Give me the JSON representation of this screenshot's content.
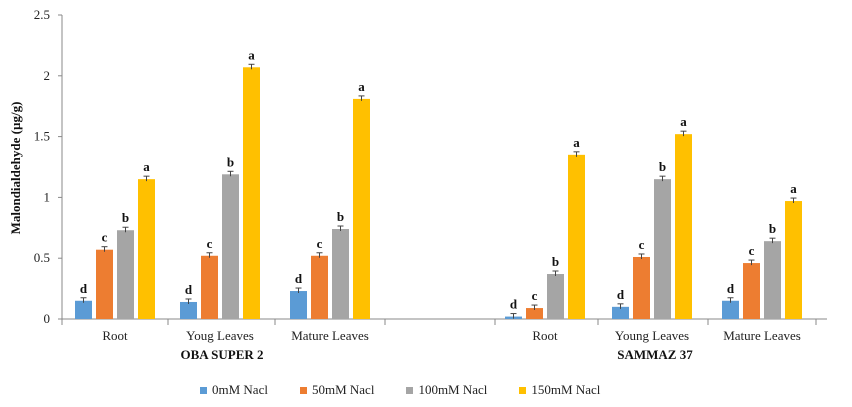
{
  "chart_data": {
    "type": "bar",
    "ylabel": "Malondialdehyde  (µg/g)",
    "ylim": [
      0,
      2.5
    ],
    "yticks": [
      "0",
      "0.5",
      "1",
      "1.5",
      "2",
      "2.5"
    ],
    "grid": false,
    "legend_position": "bottom",
    "colors": [
      "#5b9bd5",
      "#ed7d31",
      "#a5a5a5",
      "#ffc000"
    ],
    "groups": [
      {
        "name": "OBA SUPER 2",
        "categories": [
          "Root",
          "Youg Leaves",
          "Mature Leaves"
        ],
        "series": [
          {
            "name": "0mM Nacl",
            "values": [
              0.15,
              0.14,
              0.23
            ],
            "labels": [
              "d",
              "d",
              "d"
            ]
          },
          {
            "name": "50mM Nacl",
            "values": [
              0.57,
              0.52,
              0.52
            ],
            "labels": [
              "c",
              "c",
              "c"
            ]
          },
          {
            "name": "100mM Nacl",
            "values": [
              0.73,
              1.19,
              0.74
            ],
            "labels": [
              "b",
              "b",
              "b"
            ]
          },
          {
            "name": "150mM Nacl",
            "values": [
              1.15,
              2.07,
              1.81
            ],
            "labels": [
              "a",
              "a",
              "a"
            ]
          }
        ]
      },
      {
        "name": "SAMMAZ 37",
        "categories": [
          "Root",
          "Young Leaves",
          "Mature Leaves"
        ],
        "series": [
          {
            "name": "0mM Nacl",
            "values": [
              0.02,
              0.1,
              0.15
            ],
            "labels": [
              "d",
              "d",
              "d"
            ]
          },
          {
            "name": "50mM Nacl",
            "values": [
              0.09,
              0.51,
              0.46
            ],
            "labels": [
              "c",
              "c",
              "c"
            ]
          },
          {
            "name": "100mM Nacl",
            "values": [
              0.37,
              1.15,
              0.64
            ],
            "labels": [
              "b",
              "b",
              "b"
            ]
          },
          {
            "name": "150mM Nacl",
            "values": [
              1.35,
              1.52,
              0.97
            ],
            "labels": [
              "a",
              "a",
              "a"
            ]
          }
        ]
      }
    ]
  },
  "legend": {
    "items": [
      "0mM Nacl",
      "50mM Nacl",
      "100mM Nacl",
      "150mM Nacl"
    ]
  }
}
